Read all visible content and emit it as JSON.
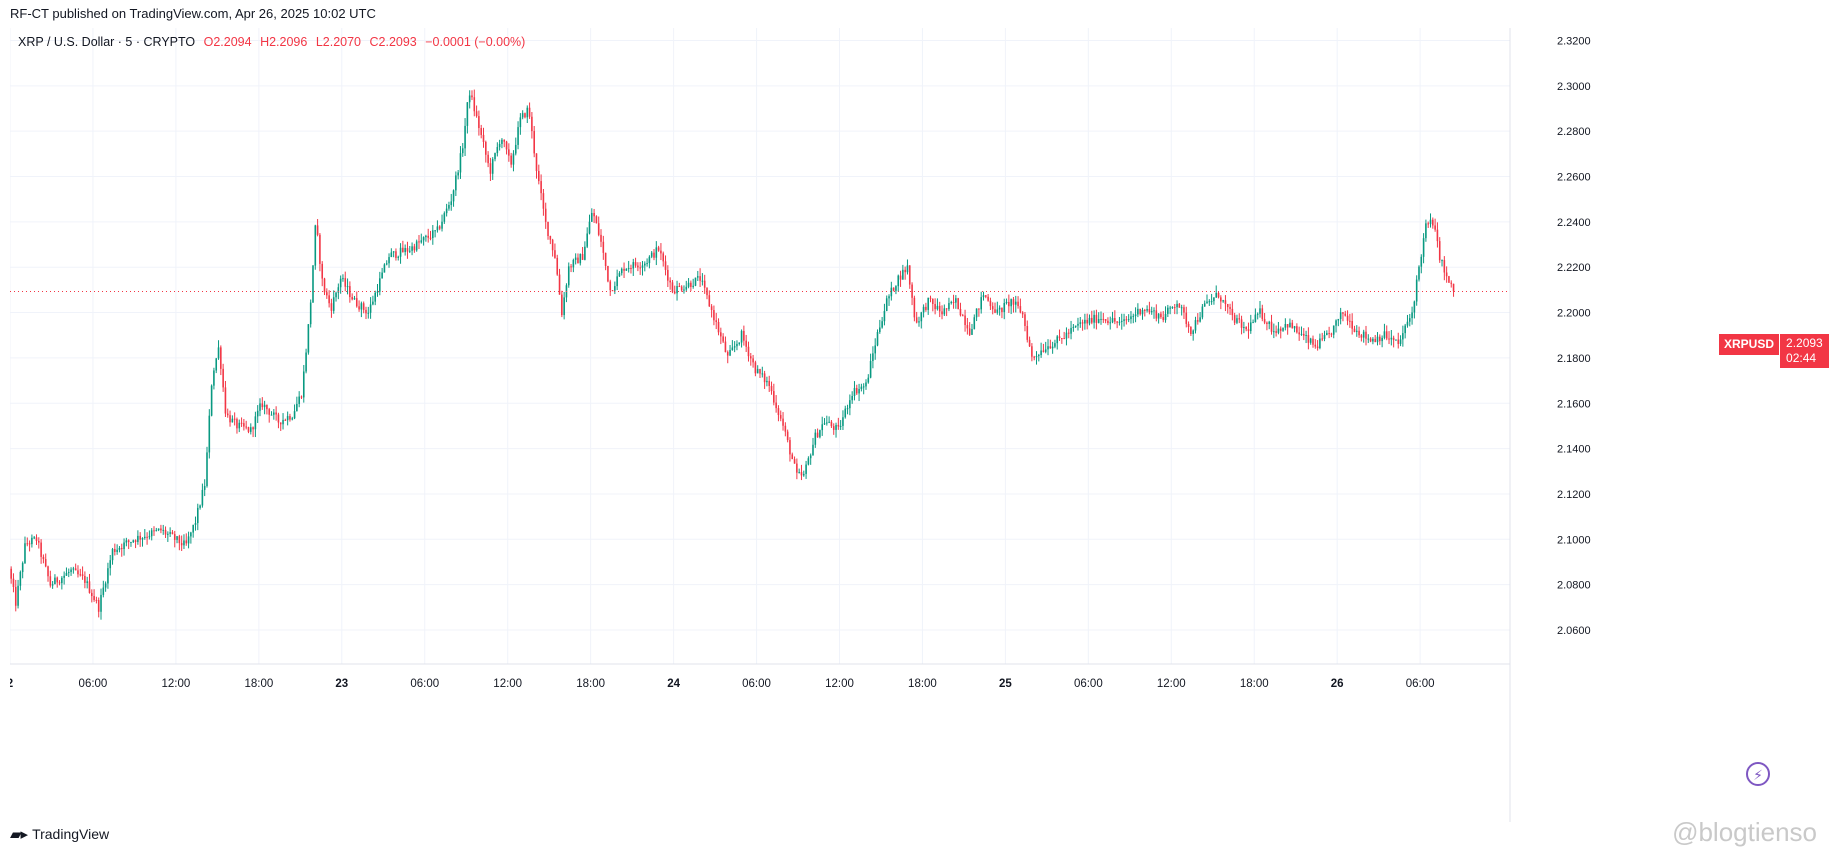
{
  "header": {
    "publish_text": "RF-CT published on TradingView.com, Apr 26, 2025 10:02 UTC"
  },
  "legend": {
    "symbol": "XRP / U.S. Dollar · 5 · CRYPTO",
    "open": "O2.2094",
    "high": "H2.2096",
    "low": "L2.2070",
    "close": "C2.2093",
    "change": "−0.0001 (−0.00%)"
  },
  "price_badge": {
    "symbol": "XRPUSD",
    "price": "2.2093",
    "countdown": "02:44"
  },
  "footer": {
    "brand": "TradingView",
    "watermark": "@blogtienso"
  },
  "colors": {
    "up": "#089981",
    "down": "#f23645",
    "grid": "#f0f3fa",
    "axis_text": "#131722",
    "last_price_line": "#f23645"
  },
  "icons": {
    "brand": "tradingview-logo-icon",
    "bolt": "lightning-icon"
  },
  "chart_data": {
    "type": "candlestick",
    "title": "XRP / U.S. Dollar · 5 · CRYPTO",
    "timeframe_minutes": 5,
    "y_ticks": [
      "2.3200",
      "2.3000",
      "2.2800",
      "2.2600",
      "2.2400",
      "2.2200",
      "2.2000",
      "2.1800",
      "2.1600",
      "2.1400",
      "2.1200",
      "2.1000",
      "2.0800",
      "2.0600"
    ],
    "ylim": [
      2.045,
      2.3255
    ],
    "x_ticks": [
      {
        "label": "2",
        "hour": 0
      },
      {
        "label": "06:00",
        "hour": 6
      },
      {
        "label": "12:00",
        "hour": 12
      },
      {
        "label": "18:00",
        "hour": 18
      },
      {
        "label": "23",
        "hour": 24
      },
      {
        "label": "06:00",
        "hour": 30
      },
      {
        "label": "12:00",
        "hour": 36
      },
      {
        "label": "18:00",
        "hour": 42
      },
      {
        "label": "24",
        "hour": 48
      },
      {
        "label": "06:00",
        "hour": 54
      },
      {
        "label": "12:00",
        "hour": 60
      },
      {
        "label": "18:00",
        "hour": 66
      },
      {
        "label": "25",
        "hour": 72
      },
      {
        "label": "06:00",
        "hour": 78
      },
      {
        "label": "12:00",
        "hour": 84
      },
      {
        "label": "18:00",
        "hour": 90
      },
      {
        "label": "26",
        "hour": 96
      },
      {
        "label": "06:00",
        "hour": 102
      }
    ],
    "xlim_hours": [
      0,
      108.5
    ],
    "last_price": 2.2093,
    "price_path": [
      {
        "hour": 0.0,
        "price": 2.087
      },
      {
        "hour": 0.5,
        "price": 2.072
      },
      {
        "hour": 1.2,
        "price": 2.098
      },
      {
        "hour": 2.0,
        "price": 2.1
      },
      {
        "hour": 3.0,
        "price": 2.08
      },
      {
        "hour": 4.5,
        "price": 2.086
      },
      {
        "hour": 5.5,
        "price": 2.082
      },
      {
        "hour": 6.5,
        "price": 2.07
      },
      {
        "hour": 7.5,
        "price": 2.095
      },
      {
        "hour": 9.0,
        "price": 2.1
      },
      {
        "hour": 11.0,
        "price": 2.104
      },
      {
        "hour": 12.8,
        "price": 2.097
      },
      {
        "hour": 13.5,
        "price": 2.108
      },
      {
        "hour": 14.2,
        "price": 2.125
      },
      {
        "hour": 14.7,
        "price": 2.172
      },
      {
        "hour": 15.2,
        "price": 2.185
      },
      {
        "hour": 15.7,
        "price": 2.155
      },
      {
        "hour": 16.5,
        "price": 2.15
      },
      {
        "hour": 17.5,
        "price": 2.148
      },
      {
        "hour": 18.3,
        "price": 2.16
      },
      {
        "hour": 19.5,
        "price": 2.152
      },
      {
        "hour": 20.5,
        "price": 2.155
      },
      {
        "hour": 21.2,
        "price": 2.165
      },
      {
        "hour": 21.8,
        "price": 2.202
      },
      {
        "hour": 22.2,
        "price": 2.24
      },
      {
        "hour": 22.7,
        "price": 2.212
      },
      {
        "hour": 23.3,
        "price": 2.202
      },
      {
        "hour": 24.0,
        "price": 2.215
      },
      {
        "hour": 25.0,
        "price": 2.205
      },
      {
        "hour": 26.0,
        "price": 2.2
      },
      {
        "hour": 27.5,
        "price": 2.225
      },
      {
        "hour": 29.0,
        "price": 2.228
      },
      {
        "hour": 30.0,
        "price": 2.232
      },
      {
        "hour": 31.0,
        "price": 2.236
      },
      {
        "hour": 32.0,
        "price": 2.25
      },
      {
        "hour": 32.8,
        "price": 2.272
      },
      {
        "hour": 33.3,
        "price": 2.298
      },
      {
        "hour": 34.0,
        "price": 2.282
      },
      {
        "hour": 34.8,
        "price": 2.262
      },
      {
        "hour": 35.6,
        "price": 2.278
      },
      {
        "hour": 36.3,
        "price": 2.265
      },
      {
        "hour": 37.0,
        "price": 2.285
      },
      {
        "hour": 37.6,
        "price": 2.29
      },
      {
        "hour": 38.2,
        "price": 2.262
      },
      {
        "hour": 38.8,
        "price": 2.24
      },
      {
        "hour": 39.5,
        "price": 2.225
      },
      {
        "hour": 40.0,
        "price": 2.2
      },
      {
        "hour": 40.5,
        "price": 2.22
      },
      {
        "hour": 41.5,
        "price": 2.225
      },
      {
        "hour": 42.2,
        "price": 2.245
      },
      {
        "hour": 42.8,
        "price": 2.232
      },
      {
        "hour": 43.5,
        "price": 2.21
      },
      {
        "hour": 44.5,
        "price": 2.22
      },
      {
        "hour": 46.0,
        "price": 2.222
      },
      {
        "hour": 47.0,
        "price": 2.228
      },
      {
        "hour": 48.0,
        "price": 2.21
      },
      {
        "hour": 49.0,
        "price": 2.212
      },
      {
        "hour": 50.0,
        "price": 2.215
      },
      {
        "hour": 51.0,
        "price": 2.198
      },
      {
        "hour": 52.0,
        "price": 2.18
      },
      {
        "hour": 53.0,
        "price": 2.19
      },
      {
        "hour": 54.0,
        "price": 2.175
      },
      {
        "hour": 55.0,
        "price": 2.168
      },
      {
        "hour": 56.0,
        "price": 2.15
      },
      {
        "hour": 57.0,
        "price": 2.128
      },
      {
        "hour": 57.5,
        "price": 2.128
      },
      {
        "hour": 58.3,
        "price": 2.145
      },
      {
        "hour": 59.0,
        "price": 2.152
      },
      {
        "hour": 60.0,
        "price": 2.148
      },
      {
        "hour": 61.0,
        "price": 2.165
      },
      {
        "hour": 62.0,
        "price": 2.168
      },
      {
        "hour": 62.8,
        "price": 2.19
      },
      {
        "hour": 63.5,
        "price": 2.205
      },
      {
        "hour": 64.3,
        "price": 2.215
      },
      {
        "hour": 65.0,
        "price": 2.22
      },
      {
        "hour": 65.6,
        "price": 2.195
      },
      {
        "hour": 66.5,
        "price": 2.205
      },
      {
        "hour": 67.5,
        "price": 2.2
      },
      {
        "hour": 68.5,
        "price": 2.205
      },
      {
        "hour": 69.5,
        "price": 2.192
      },
      {
        "hour": 70.5,
        "price": 2.208
      },
      {
        "hour": 71.5,
        "price": 2.2
      },
      {
        "hour": 72.5,
        "price": 2.205
      },
      {
        "hour": 73.3,
        "price": 2.2
      },
      {
        "hour": 74.0,
        "price": 2.18
      },
      {
        "hour": 75.0,
        "price": 2.185
      },
      {
        "hour": 76.0,
        "price": 2.188
      },
      {
        "hour": 77.5,
        "price": 2.195
      },
      {
        "hour": 79.0,
        "price": 2.198
      },
      {
        "hour": 80.5,
        "price": 2.195
      },
      {
        "hour": 82.0,
        "price": 2.202
      },
      {
        "hour": 83.5,
        "price": 2.198
      },
      {
        "hour": 84.5,
        "price": 2.205
      },
      {
        "hour": 85.5,
        "price": 2.192
      },
      {
        "hour": 86.5,
        "price": 2.203
      },
      {
        "hour": 87.5,
        "price": 2.208
      },
      {
        "hour": 88.5,
        "price": 2.198
      },
      {
        "hour": 89.5,
        "price": 2.192
      },
      {
        "hour": 90.5,
        "price": 2.2
      },
      {
        "hour": 91.5,
        "price": 2.192
      },
      {
        "hour": 92.5,
        "price": 2.195
      },
      {
        "hour": 93.5,
        "price": 2.19
      },
      {
        "hour": 94.5,
        "price": 2.185
      },
      {
        "hour": 95.5,
        "price": 2.19
      },
      {
        "hour": 96.5,
        "price": 2.2
      },
      {
        "hour": 97.5,
        "price": 2.192
      },
      {
        "hour": 98.5,
        "price": 2.188
      },
      {
        "hour": 99.5,
        "price": 2.19
      },
      {
        "hour": 100.5,
        "price": 2.186
      },
      {
        "hour": 101.5,
        "price": 2.2
      },
      {
        "hour": 102.0,
        "price": 2.22
      },
      {
        "hour": 102.5,
        "price": 2.238
      },
      {
        "hour": 103.0,
        "price": 2.24
      },
      {
        "hour": 103.5,
        "price": 2.225
      },
      {
        "hour": 104.0,
        "price": 2.215
      },
      {
        "hour": 104.5,
        "price": 2.2093
      }
    ]
  }
}
